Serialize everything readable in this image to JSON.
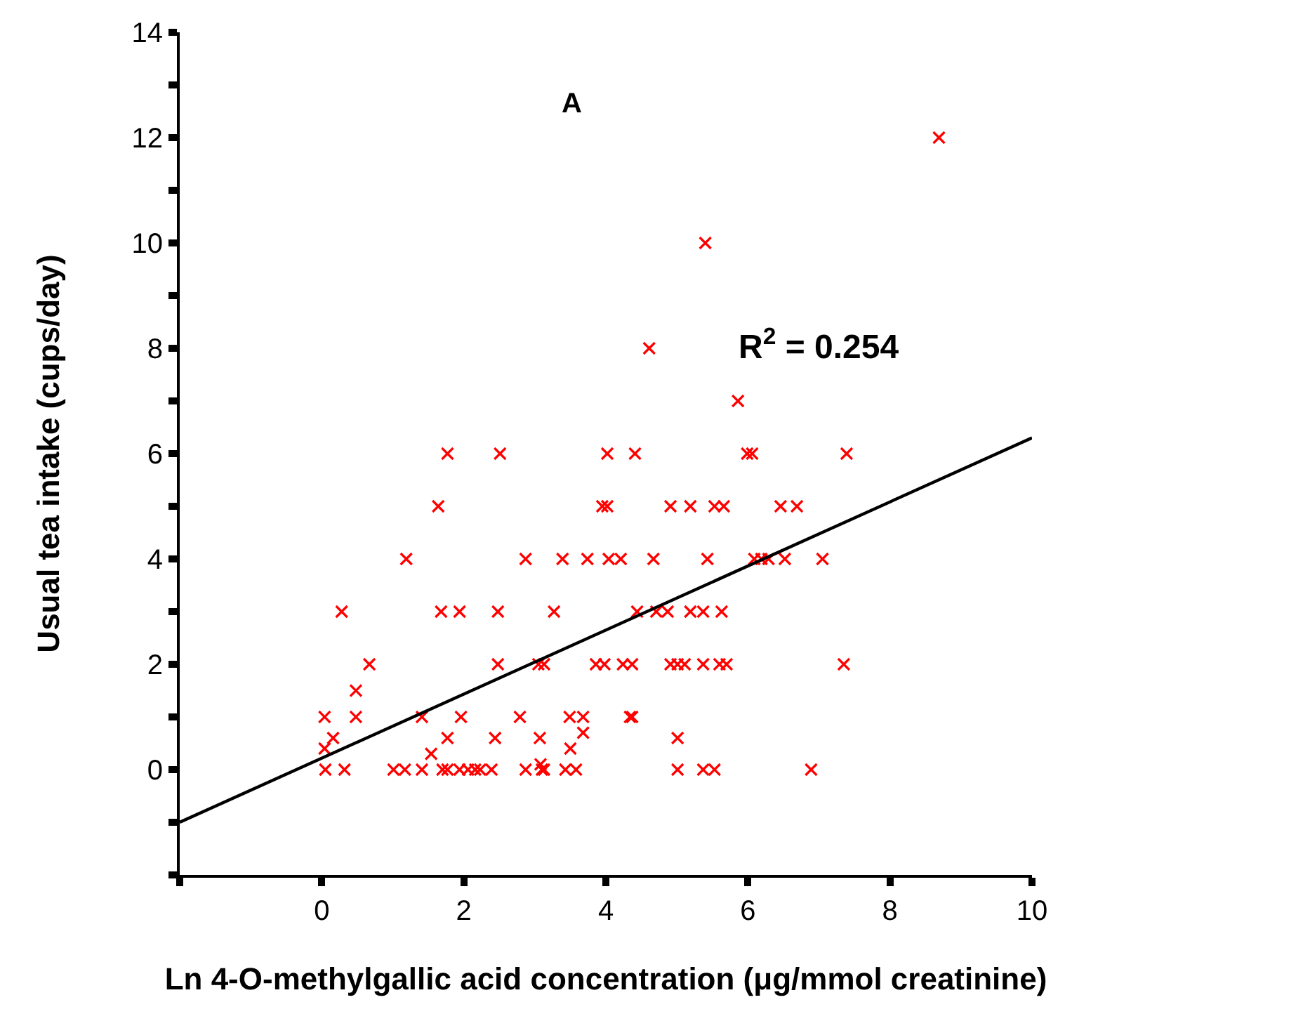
{
  "chart_data": {
    "type": "scatter",
    "xlabel": "Ln 4-O-methylgallic acid concentration (μg/mmol creatinine)",
    "ylabel": "Usual tea intake (cups/day)",
    "annotations": [
      "A",
      "R$^{2}$ = 0.254"
    ],
    "xlim": [
      -2,
      10
    ],
    "xticks": [
      {
        "value": -2,
        "label": null
      },
      0,
      2,
      4,
      6,
      8,
      10
    ],
    "ylim": [
      -2,
      14
    ],
    "yticks": [
      {
        "value": -2,
        "label": null
      },
      {
        "value": -1,
        "label": null
      },
      0,
      {
        "value": 1,
        "label": null
      },
      2,
      {
        "value": 3,
        "label": null
      },
      4,
      {
        "value": 5,
        "label": null
      },
      6,
      {
        "value": 7,
        "label": null
      },
      8,
      {
        "value": 9,
        "label": null
      },
      10,
      {
        "value": 11,
        "label": null
      },
      12,
      {
        "value": 13,
        "label": null
      },
      14
    ],
    "legend": false,
    "marker": "cross",
    "series": [
      {
        "color": "#ff0000",
        "x": [
          8.69,
          5.4,
          4.61,
          5.86,
          1.77,
          2.51,
          4.02,
          4.41,
          5.99,
          6.06,
          7.39,
          1.64,
          3.95,
          4.02,
          4.91,
          5.19,
          5.53,
          5.66,
          6.46,
          6.69,
          1.19,
          2.87,
          3.39,
          3.74,
          4.04,
          4.21,
          4.67,
          5.43,
          6.09,
          6.19,
          6.29,
          6.52,
          7.05,
          0.28,
          1.68,
          1.94,
          2.48,
          3.27,
          4.44,
          4.71,
          4.87,
          5.19,
          5.37,
          5.63,
          0.67,
          2.48,
          3.05,
          3.13,
          3.86,
          3.98,
          4.24,
          4.37,
          4.91,
          5.01,
          5.11,
          5.37,
          5.6,
          5.7,
          7.35,
          0.48,
          0.04,
          0.48,
          1.41,
          1.96,
          2.79,
          3.49,
          3.68,
          4.34,
          4.37,
          0.16,
          1.77,
          2.44,
          3.07,
          5.01,
          0.04,
          3.68,
          3.5,
          1.54,
          3.08,
          0.05,
          0.32,
          1.01,
          1.17,
          1.41,
          1.7,
          1.77,
          1.94,
          2.06,
          2.16,
          2.23,
          2.39,
          2.87,
          3.1,
          3.13,
          3.43,
          3.58,
          5.01,
          5.37,
          5.53,
          6.89
        ],
        "values": [
          12,
          10,
          8,
          7,
          6,
          6,
          6,
          6,
          6,
          6,
          6,
          5,
          5,
          5,
          5,
          5,
          5,
          5,
          5,
          5,
          4,
          4,
          4,
          4,
          4,
          4,
          4,
          4,
          4,
          4,
          4,
          4,
          4,
          3,
          3,
          3,
          3,
          3,
          3,
          3,
          3,
          3,
          3,
          3,
          2,
          2,
          2,
          2,
          2,
          2,
          2,
          2,
          2,
          2,
          2,
          2,
          2,
          2,
          2,
          1.5,
          1,
          1,
          1,
          1,
          1,
          1,
          1,
          1,
          1,
          0.6,
          0.6,
          0.6,
          0.6,
          0.6,
          0.4,
          0.7,
          0.4,
          0.3,
          0.1,
          0,
          0,
          0,
          0,
          0,
          0,
          0,
          0,
          0,
          0,
          0,
          0,
          0,
          0,
          0,
          0,
          0,
          0,
          0,
          0,
          0
        ]
      },
      {
        "type": "line",
        "color": "#000000",
        "marker": "none",
        "x": [
          -2,
          10
        ],
        "values": [
          -1.0,
          6.3
        ]
      }
    ]
  }
}
